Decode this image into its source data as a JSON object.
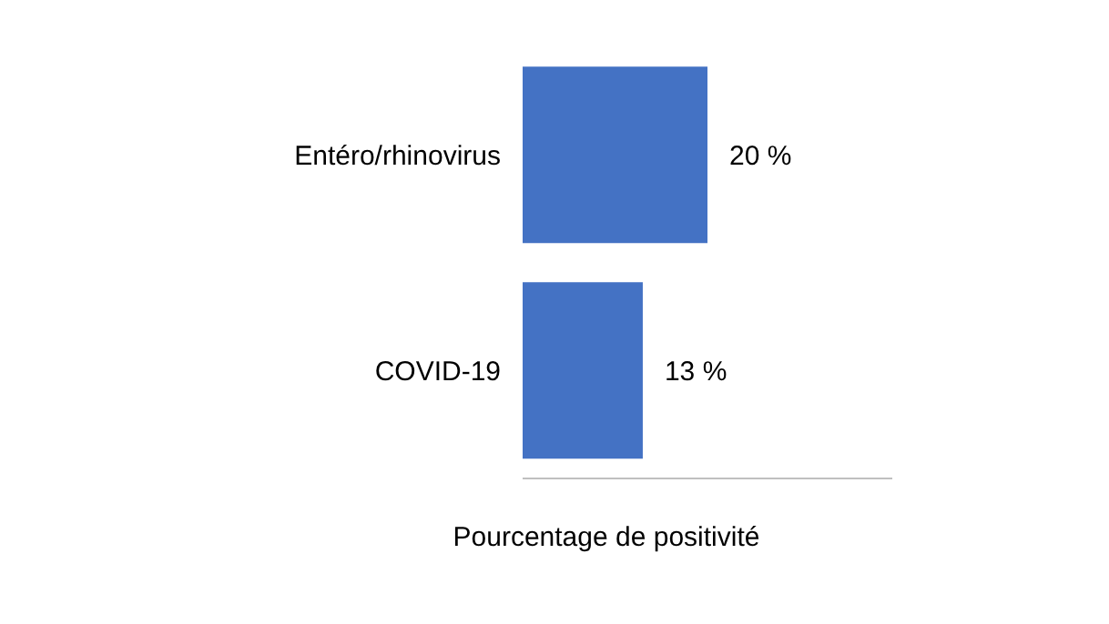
{
  "chart_data": {
    "type": "bar",
    "orientation": "horizontal",
    "xlabel": "Pourcentage de positivité",
    "categories": [
      "Entéro/rhinovirus",
      "COVID-19"
    ],
    "values": [
      20,
      13
    ],
    "value_labels": [
      "20 %",
      "13 %"
    ],
    "color": "#4472c4",
    "xlim": [
      0,
      40
    ],
    "tick_labels": "y"
  }
}
